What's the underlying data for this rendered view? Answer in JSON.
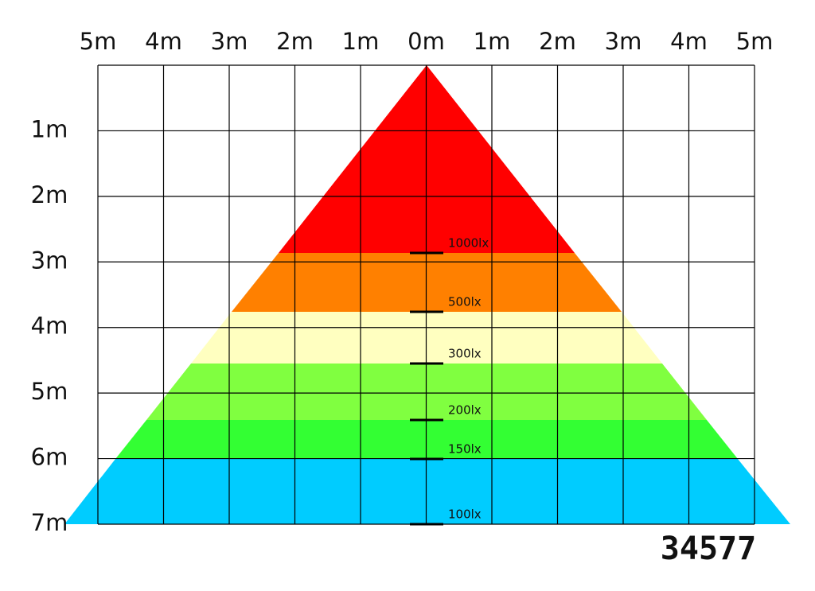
{
  "top_labels": [
    "5m",
    "4m",
    "3m",
    "2m",
    "1m",
    "0m",
    "1m",
    "2m",
    "3m",
    "4m",
    "5m"
  ],
  "side_labels": [
    "1m",
    "2m",
    "3m",
    "4m",
    "5m",
    "6m",
    "7m"
  ],
  "lux_labels": [
    "1000lx",
    "500lx",
    "300lx",
    "200lx",
    "150lx",
    "100lx"
  ],
  "code": "34577"
}
